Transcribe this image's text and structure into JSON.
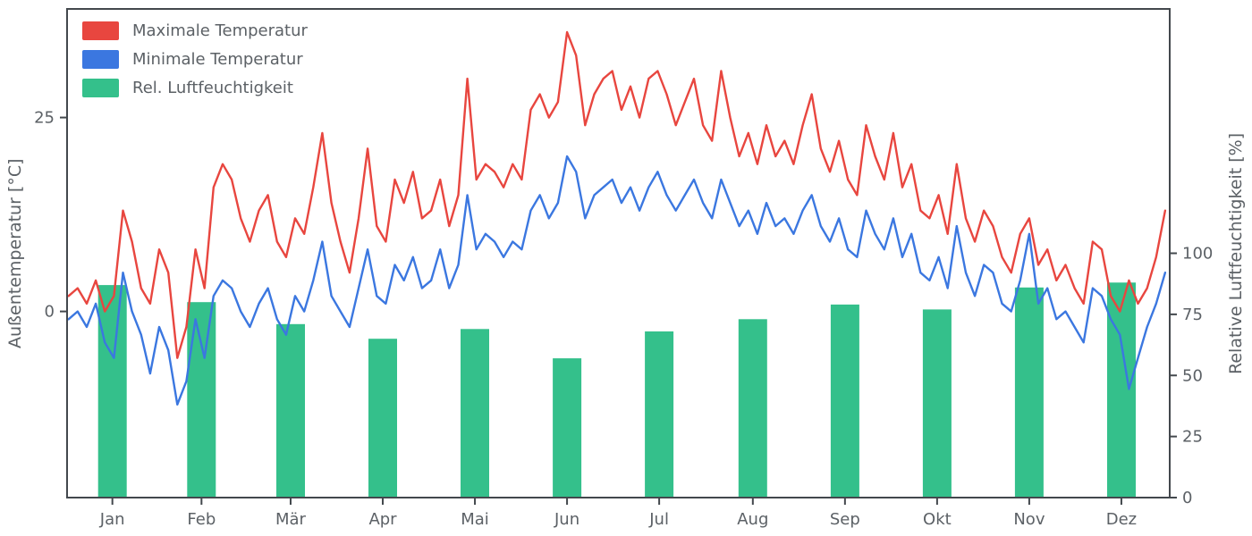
{
  "figure": {
    "background": "#ffffff",
    "text_color": "#5c6166",
    "spine_color": "#43484d"
  },
  "legend": {
    "items": [
      {
        "label": "Maximale Temperatur",
        "color": "#e8463f"
      },
      {
        "label": "Minimale Temperatur",
        "color": "#3b77e0"
      },
      {
        "label": "Rel. Luftfeuchtigkeit",
        "color": "#34c08b"
      }
    ]
  },
  "chart_data": {
    "type": "mixed",
    "title": "",
    "grid": false,
    "legend_position": "upper left",
    "x_tick_labels": [
      "Jan",
      "Feb",
      "Mär",
      "Apr",
      "Mai",
      "Jun",
      "Jul",
      "Aug",
      "Sep",
      "Okt",
      "Nov",
      "Dez"
    ],
    "month_lengths": [
      31,
      28,
      31,
      30,
      31,
      30,
      31,
      31,
      30,
      31,
      30,
      31
    ],
    "left_axis": {
      "label": "Außentemperatur [°C]",
      "ticks": [
        0,
        25
      ],
      "range": [
        -24,
        39
      ]
    },
    "right_axis": {
      "label": "Relative Luftfeuchtigkeit [%]",
      "ticks": [
        0,
        25,
        50,
        75,
        100
      ],
      "range": [
        0,
        200
      ]
    },
    "x_day_start": 1,
    "x_day_step": 3,
    "x_day_total": 365,
    "series": [
      {
        "name": "Maximale Temperatur",
        "type": "line",
        "axis": "left",
        "color": "#e8463f",
        "values": [
          2,
          3,
          1,
          4,
          0,
          2,
          13,
          9,
          3,
          1,
          8,
          5,
          -6,
          -2,
          8,
          3,
          16,
          19,
          17,
          12,
          9,
          13,
          15,
          9,
          7,
          12,
          10,
          16,
          23,
          14,
          9,
          5,
          12,
          21,
          11,
          9,
          17,
          14,
          18,
          12,
          13,
          17,
          11,
          15,
          30,
          17,
          19,
          18,
          16,
          19,
          17,
          26,
          28,
          25,
          27,
          36,
          33,
          24,
          28,
          30,
          31,
          26,
          29,
          25,
          30,
          31,
          28,
          24,
          27,
          30,
          24,
          22,
          31,
          25,
          20,
          23,
          19,
          24,
          20,
          22,
          19,
          24,
          28,
          21,
          18,
          22,
          17,
          15,
          24,
          20,
          17,
          23,
          16,
          19,
          13,
          12,
          15,
          10,
          19,
          12,
          9,
          13,
          11,
          7,
          5,
          10,
          12,
          6,
          8,
          4,
          6,
          3,
          1,
          9,
          8,
          2,
          0,
          4,
          1,
          3,
          7,
          13
        ]
      },
      {
        "name": "Minimale Temperatur",
        "type": "line",
        "axis": "left",
        "color": "#3b77e0",
        "values": [
          -1,
          0,
          -2,
          1,
          -4,
          -6,
          5,
          0,
          -3,
          -8,
          -2,
          -5,
          -12,
          -9,
          -1,
          -6,
          2,
          4,
          3,
          0,
          -2,
          1,
          3,
          -1,
          -3,
          2,
          0,
          4,
          9,
          2,
          0,
          -2,
          3,
          8,
          2,
          1,
          6,
          4,
          7,
          3,
          4,
          8,
          3,
          6,
          15,
          8,
          10,
          9,
          7,
          9,
          8,
          13,
          15,
          12,
          14,
          20,
          18,
          12,
          15,
          16,
          17,
          14,
          16,
          13,
          16,
          18,
          15,
          13,
          15,
          17,
          14,
          12,
          17,
          14,
          11,
          13,
          10,
          14,
          11,
          12,
          10,
          13,
          15,
          11,
          9,
          12,
          8,
          7,
          13,
          10,
          8,
          12,
          7,
          10,
          5,
          4,
          7,
          3,
          11,
          5,
          2,
          6,
          5,
          1,
          0,
          4,
          10,
          1,
          3,
          -1,
          0,
          -2,
          -4,
          3,
          2,
          -1,
          -3,
          -10,
          -6,
          -2,
          1,
          5
        ]
      },
      {
        "name": "Rel. Luftfeuchtigkeit",
        "type": "bar",
        "axis": "right",
        "color": "#34c08b",
        "categories": [
          "Jan",
          "Feb",
          "Mär",
          "Apr",
          "Mai",
          "Jun",
          "Jul",
          "Aug",
          "Sep",
          "Okt",
          "Nov",
          "Dez"
        ],
        "values": [
          87,
          80,
          71,
          65,
          69,
          57,
          68,
          73,
          79,
          77,
          86,
          88
        ]
      }
    ]
  }
}
